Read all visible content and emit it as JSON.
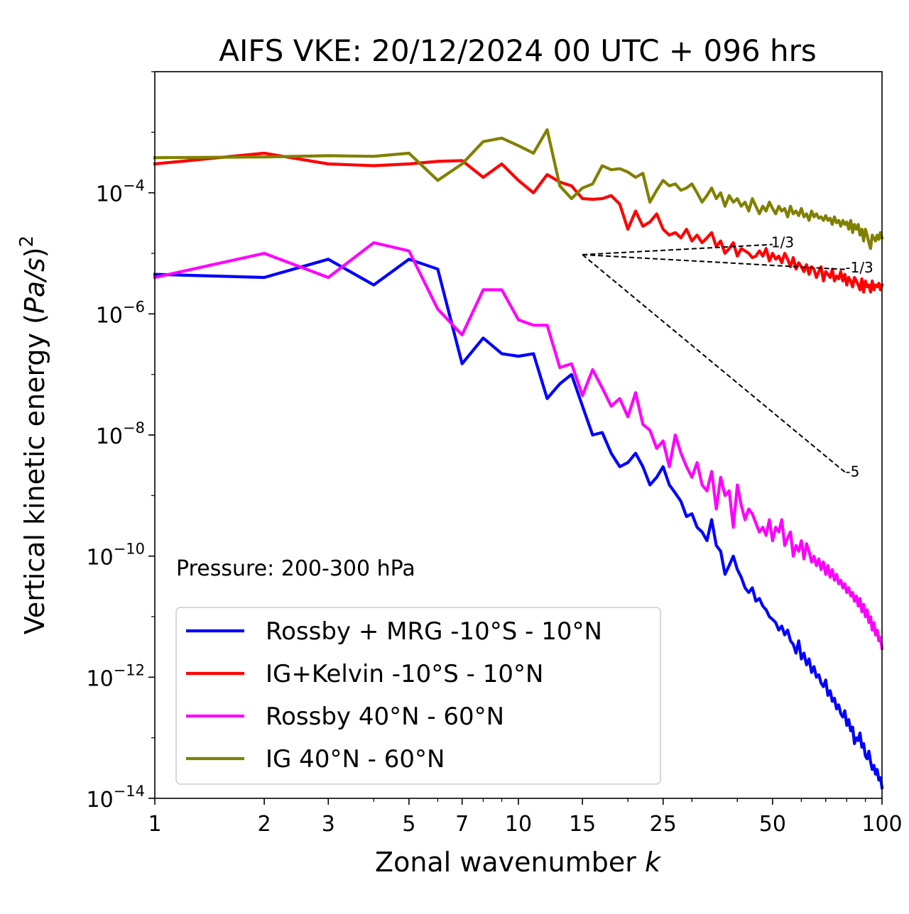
{
  "chart_data": {
    "type": "line",
    "title": "AIFS VKE: 20/12/2024 00 UTC + 096 hrs",
    "xlabel": "Zonal wavenumber k",
    "ylabel": "Vertical kinetic energy (Pa/s)^2",
    "xscale": "log",
    "yscale": "log",
    "xlim": [
      1,
      100
    ],
    "ylim": [
      1e-14,
      0.01
    ],
    "x_ticks": [
      1,
      2,
      3,
      5,
      7,
      10,
      15,
      25,
      50,
      100
    ],
    "x_tick_labels": [
      "1",
      "2",
      "3",
      "5",
      "7",
      "10",
      "15",
      "25",
      "50",
      "100"
    ],
    "y_ticks": [
      1e-14,
      1e-12,
      1e-10,
      1e-08,
      1e-06,
      0.0001
    ],
    "y_tick_labels": [
      {
        "base": "10",
        "exp": "−14"
      },
      {
        "base": "10",
        "exp": "−12"
      },
      {
        "base": "10",
        "exp": "−10"
      },
      {
        "base": "10",
        "exp": "−8"
      },
      {
        "base": "10",
        "exp": "−6"
      },
      {
        "base": "10",
        "exp": "−4"
      }
    ],
    "grid": false,
    "legend_position": "lower-left",
    "annotation": "Pressure: 200-300 hPa",
    "reference_slopes": [
      {
        "label": "1/3",
        "slope": 0.3333,
        "x": [
          15,
          50
        ],
        "y": [
          9.5e-06,
          1.4e-05
        ]
      },
      {
        "label": "-1/3",
        "slope": -0.3333,
        "x": [
          15,
          80
        ],
        "y": [
          9.5e-06,
          5.4e-06
        ]
      },
      {
        "label": "-5",
        "slope": -5,
        "x": [
          15,
          80
        ],
        "y": [
          9.5e-06,
          2.3e-09
        ]
      }
    ],
    "series": [
      {
        "name": "Rossby + MRG -10°S - 10°N",
        "color": "#0000ff",
        "x": [
          1,
          2,
          3,
          4,
          5,
          6,
          7,
          8,
          9,
          10,
          11,
          12,
          13,
          14,
          15,
          16,
          17,
          18,
          19,
          20,
          21,
          22,
          23,
          24,
          25,
          26,
          27,
          28,
          29,
          30,
          31,
          32,
          33,
          34,
          35,
          36,
          37,
          38,
          39,
          40,
          41,
          42,
          43,
          44,
          45,
          46,
          47,
          48,
          49,
          50,
          51,
          52,
          53,
          54,
          55,
          56,
          57,
          58,
          59,
          60,
          61,
          62,
          63,
          64,
          65,
          66,
          67,
          68,
          69,
          70,
          71,
          72,
          73,
          74,
          75,
          76,
          77,
          78,
          79,
          80,
          81,
          82,
          83,
          84,
          85,
          86,
          87,
          88,
          89,
          90,
          91,
          92,
          93,
          94,
          95,
          96,
          97,
          98,
          99,
          100
        ],
        "y": [
          4.5e-06,
          4e-06,
          8e-06,
          3e-06,
          8e-06,
          5.5e-06,
          1.5e-07,
          4e-07,
          2.2e-07,
          2e-07,
          2.2e-07,
          4e-08,
          7e-08,
          1e-07,
          3e-08,
          1e-08,
          1.1e-08,
          5e-09,
          3e-09,
          3.5e-09,
          5e-09,
          3e-09,
          1.5e-09,
          2e-09,
          3e-09,
          1.5e-09,
          1.1e-09,
          8e-10,
          4.5e-10,
          5e-10,
          3e-10,
          2.5e-10,
          1.8e-10,
          4e-10,
          1.5e-10,
          1.2e-10,
          5e-11,
          7e-11,
          1e-10,
          6e-11,
          4.5e-11,
          3e-11,
          2.5e-11,
          3e-11,
          1.8e-11,
          2e-11,
          1.5e-11,
          1.3e-11,
          1e-11,
          9e-12,
          8e-12,
          6e-12,
          7e-12,
          5e-12,
          6e-12,
          4e-12,
          3.5e-12,
          2.5e-12,
          4e-12,
          2e-12,
          2.5e-12,
          1.6e-12,
          2e-12,
          1.2e-12,
          1.5e-12,
          1e-12,
          1.1e-12,
          8e-13,
          7e-13,
          9e-13,
          5e-13,
          6e-13,
          4e-13,
          4.5e-13,
          3e-13,
          3.5e-13,
          2.5e-13,
          2.2e-13,
          2.8e-13,
          1.6e-13,
          2e-13,
          1.3e-13,
          1.5e-13,
          8e-14,
          1e-13,
          9e-14,
          1.2e-13,
          7e-14,
          8e-14,
          5e-14,
          4.5e-14,
          6e-14,
          4e-14,
          3e-14,
          3.5e-14,
          2.5e-14,
          3e-14,
          2e-14,
          2.2e-14,
          1.5e-14
        ]
      },
      {
        "name": "IG+Kelvin -10°S - 10°N",
        "color": "#ff0000",
        "x": [
          1,
          2,
          3,
          4,
          5,
          6,
          7,
          8,
          9,
          10,
          11,
          12,
          13,
          14,
          15,
          16,
          17,
          18,
          19,
          20,
          21,
          22,
          23,
          24,
          25,
          26,
          27,
          28,
          29,
          30,
          31,
          32,
          33,
          34,
          35,
          36,
          37,
          38,
          39,
          40,
          41,
          42,
          43,
          44,
          45,
          46,
          47,
          48,
          49,
          50,
          51,
          52,
          53,
          54,
          55,
          56,
          57,
          58,
          59,
          60,
          61,
          62,
          63,
          64,
          65,
          66,
          67,
          68,
          69,
          70,
          71,
          72,
          73,
          74,
          75,
          76,
          77,
          78,
          79,
          80,
          81,
          82,
          83,
          84,
          85,
          86,
          87,
          88,
          89,
          90,
          91,
          92,
          93,
          94,
          95,
          96,
          97,
          98,
          99,
          100
        ],
        "y": [
          0.0003,
          0.00045,
          0.0003,
          0.00028,
          0.0003,
          0.00033,
          0.00034,
          0.00018,
          0.0003,
          0.00016,
          0.0001,
          0.0002,
          0.00015,
          0.00013,
          8e-05,
          7.8e-05,
          8e-05,
          9e-05,
          6.5e-05,
          2.5e-05,
          5e-05,
          2.8e-05,
          3.3e-05,
          4.5e-05,
          2.5e-05,
          2e-05,
          2.2e-05,
          1.8e-05,
          2.5e-05,
          1.6e-05,
          2e-05,
          1.5e-05,
          1.8e-05,
          2.2e-05,
          1.3e-05,
          1.6e-05,
          1e-05,
          1.2e-05,
          1.5e-05,
          9e-06,
          1.2e-05,
          1.1e-05,
          1e-05,
          8.5e-06,
          9e-06,
          1.1e-05,
          9e-06,
          1.2e-05,
          7.5e-06,
          1e-05,
          8e-06,
          9e-06,
          7e-06,
          1e-05,
          8e-06,
          6e-06,
          8.5e-06,
          5.5e-06,
          7e-06,
          6e-06,
          5e-06,
          6.5e-06,
          4.5e-06,
          6e-06,
          5.5e-06,
          4e-06,
          5e-06,
          6e-06,
          3.5e-06,
          5e-06,
          4.5e-06,
          4e-06,
          5.5e-06,
          3.5e-06,
          4.2e-06,
          3.8e-06,
          5e-06,
          3.5e-06,
          4.5e-06,
          3e-06,
          4e-06,
          3.5e-06,
          2.8e-06,
          4e-06,
          3.5e-06,
          3e-06,
          2.5e-06,
          3.8e-06,
          2.3e-06,
          3.5e-06,
          2.8e-06,
          3e-06,
          2.3e-06,
          3.5e-06,
          2.5e-06,
          3e-06,
          2.8e-06,
          3.2e-06,
          2.5e-06,
          3e-06
        ]
      },
      {
        "name": "Rossby 40°N - 60°N",
        "color": "#ff00ff",
        "x": [
          1,
          2,
          3,
          4,
          5,
          6,
          7,
          8,
          9,
          10,
          11,
          12,
          13,
          14,
          15,
          16,
          17,
          18,
          19,
          20,
          21,
          22,
          23,
          24,
          25,
          26,
          27,
          28,
          29,
          30,
          31,
          32,
          33,
          34,
          35,
          36,
          37,
          38,
          39,
          40,
          41,
          42,
          43,
          44,
          45,
          46,
          47,
          48,
          49,
          50,
          51,
          52,
          53,
          54,
          55,
          56,
          57,
          58,
          59,
          60,
          61,
          62,
          63,
          64,
          65,
          66,
          67,
          68,
          69,
          70,
          71,
          72,
          73,
          74,
          75,
          76,
          77,
          78,
          79,
          80,
          81,
          82,
          83,
          84,
          85,
          86,
          87,
          88,
          89,
          90,
          91,
          92,
          93,
          94,
          95,
          96,
          97,
          98,
          99,
          100
        ],
        "y": [
          4e-06,
          1e-05,
          4e-06,
          1.5e-05,
          1.1e-05,
          1.2e-06,
          4.5e-07,
          2.5e-06,
          2.5e-06,
          8e-07,
          6.5e-07,
          6.5e-07,
          1.3e-07,
          1.5e-07,
          4.5e-08,
          1.2e-07,
          6e-08,
          3e-08,
          4e-08,
          2e-08,
          5e-08,
          1.5e-08,
          1.2e-08,
          6e-09,
          8e-09,
          3e-09,
          1e-08,
          5e-09,
          3e-09,
          2e-09,
          3.5e-09,
          1.5e-09,
          1.2e-09,
          2.5e-09,
          6e-10,
          2e-09,
          1e-09,
          1.2e-09,
          3e-10,
          1.5e-09,
          7e-10,
          4e-10,
          6e-10,
          5e-10,
          3.5e-10,
          2.5e-10,
          3e-10,
          2.2e-10,
          4e-10,
          1.8e-10,
          3e-10,
          2.5e-10,
          4e-10,
          1.5e-10,
          2e-10,
          2.5e-10,
          1e-10,
          1.5e-10,
          1.2e-10,
          1.8e-10,
          9e-11,
          1.6e-10,
          1.2e-10,
          8e-11,
          1e-10,
          7e-11,
          9e-11,
          6e-11,
          8e-11,
          5e-11,
          7e-11,
          4.5e-11,
          6e-11,
          4e-11,
          5e-11,
          3.5e-11,
          4e-11,
          3e-11,
          3.5e-11,
          2.5e-11,
          3e-11,
          2.2e-11,
          2.5e-11,
          1.8e-11,
          2.2e-11,
          1.5e-11,
          2e-11,
          1.2e-11,
          1.6e-11,
          1e-11,
          1.3e-11,
          8e-12,
          1e-11,
          6e-12,
          8e-12,
          5e-12,
          6e-12,
          4e-12,
          4.5e-12,
          3e-12
        ]
      },
      {
        "name": "IG 40°N - 60°N",
        "color": "#808000",
        "x": [
          1,
          2,
          3,
          4,
          5,
          6,
          7,
          8,
          9,
          10,
          11,
          12,
          13,
          14,
          15,
          16,
          17,
          18,
          19,
          20,
          21,
          22,
          23,
          24,
          25,
          26,
          27,
          28,
          29,
          30,
          31,
          32,
          33,
          34,
          35,
          36,
          37,
          38,
          39,
          40,
          41,
          42,
          43,
          44,
          45,
          46,
          47,
          48,
          49,
          50,
          51,
          52,
          53,
          54,
          55,
          56,
          57,
          58,
          59,
          60,
          61,
          62,
          63,
          64,
          65,
          66,
          67,
          68,
          69,
          70,
          71,
          72,
          73,
          74,
          75,
          76,
          77,
          78,
          79,
          80,
          81,
          82,
          83,
          84,
          85,
          86,
          87,
          88,
          89,
          90,
          91,
          92,
          93,
          94,
          95,
          96,
          97,
          98,
          99,
          100
        ],
        "y": [
          0.00038,
          0.00039,
          0.00041,
          0.0004,
          0.00045,
          0.00016,
          0.0003,
          0.0007,
          0.0008,
          0.0006,
          0.00045,
          0.0011,
          0.00013,
          8e-05,
          0.00012,
          0.00014,
          0.00028,
          0.00024,
          0.00025,
          0.00022,
          0.00018,
          0.00021,
          7e-05,
          0.00011,
          0.00016,
          0.00013,
          0.00014,
          0.00011,
          0.00012,
          0.00014,
          0.0001,
          7e-05,
          9e-05,
          0.00012,
          8e-05,
          0.0001,
          6e-05,
          9e-05,
          7e-05,
          8e-05,
          6e-05,
          7e-05,
          5e-05,
          8e-05,
          6e-05,
          4.5e-05,
          6e-05,
          5e-05,
          7e-05,
          5.5e-05,
          4.5e-05,
          6e-05,
          5e-05,
          5.5e-05,
          4e-05,
          6e-05,
          4.5e-05,
          5e-05,
          4.2e-05,
          5.5e-05,
          4e-05,
          4.5e-05,
          3.5e-05,
          5e-05,
          4e-05,
          4.5e-05,
          3.8e-05,
          4e-05,
          3.5e-05,
          4.2e-05,
          3.5e-05,
          3.8e-05,
          3e-05,
          4e-05,
          3.2e-05,
          3.5e-05,
          2.8e-05,
          3.5e-05,
          3e-05,
          3.3e-05,
          2.5e-05,
          3.5e-05,
          2.2e-05,
          3e-05,
          2.5e-05,
          3e-05,
          2e-05,
          2.5e-05,
          1.6e-05,
          2.5e-05,
          2e-05,
          1.5e-05,
          1.2e-05,
          2e-05,
          1.8e-05,
          1.6e-05,
          2e-05,
          1.7e-05,
          2.2e-05,
          1.8e-05
        ]
      }
    ]
  }
}
